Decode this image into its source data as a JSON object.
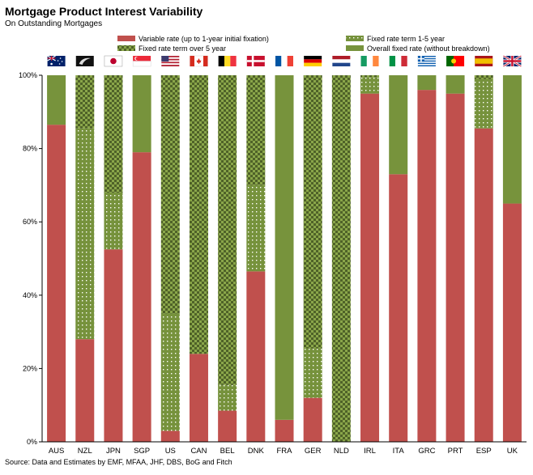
{
  "header": {
    "title": "Mortgage Product Interest Variability",
    "subtitle": "On Outstanding Mortgages"
  },
  "footer": {
    "source": "Source: Data and Estimates by EMF, MFAA, JHF, DBS, BoG and Fitch"
  },
  "colors": {
    "variable": "#c0504d",
    "fixed_1_5": "#76923c",
    "fixed_over_5": "#4f6228",
    "overall_fixed": "#77933c"
  },
  "chart_data": {
    "type": "bar",
    "stacked": true,
    "categories": [
      "AUS",
      "NZL",
      "JPN",
      "SGP",
      "US",
      "CAN",
      "BEL",
      "DNK",
      "FRA",
      "GER",
      "NLD",
      "IRL",
      "ITA",
      "GRC",
      "PRT",
      "ESP",
      "UK"
    ],
    "flags": [
      "australia-flag",
      "new-zealand-flag",
      "japan-flag",
      "singapore-flag",
      "us-flag",
      "canada-flag",
      "belgium-flag",
      "denmark-flag",
      "france-flag",
      "germany-flag",
      "netherlands-flag",
      "ireland-flag",
      "italy-flag",
      "greece-flag",
      "portugal-flag",
      "spain-flag",
      "uk-flag"
    ],
    "series": [
      {
        "name": "Variable rate (up to 1-year initial fixation)",
        "values": [
          86.5,
          28,
          52.5,
          79,
          3,
          24,
          8.5,
          46.5,
          6,
          12,
          0,
          95,
          73,
          96,
          95,
          85.5,
          65
        ]
      },
      {
        "name": "Fixed rate term 1-5 year",
        "values": [
          0,
          57.5,
          15.5,
          0,
          32,
          0,
          7,
          23.5,
          0,
          13.5,
          0,
          4.5,
          0,
          0,
          0,
          13.5,
          0
        ]
      },
      {
        "name": "Fixed rate term over 5 year",
        "values": [
          0,
          14.5,
          32,
          0,
          65,
          76,
          84.5,
          30,
          0,
          74.5,
          100,
          0.5,
          0,
          0,
          0,
          1,
          0
        ]
      },
      {
        "name": "Overall fixed rate (without breakdown)",
        "values": [
          13.5,
          0,
          0,
          21,
          0,
          0,
          0,
          0,
          94,
          0,
          0,
          0,
          27,
          4,
          5,
          0,
          35
        ]
      }
    ],
    "y_ticks": [
      "0%",
      "20%",
      "40%",
      "60%",
      "80%",
      "100%"
    ],
    "ylim": [
      0,
      100
    ],
    "grid": false,
    "legend_position": "top"
  }
}
